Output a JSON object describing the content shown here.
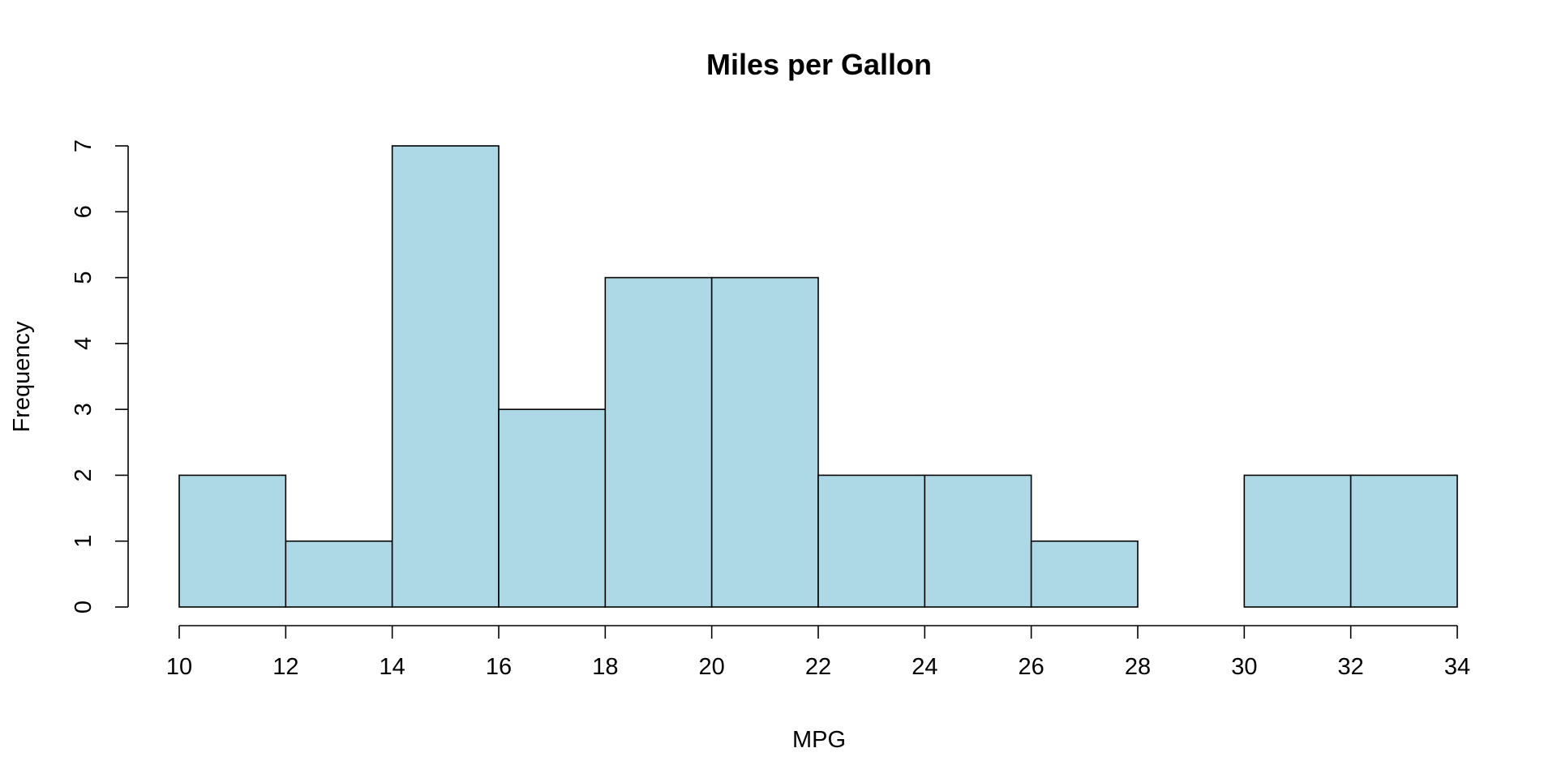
{
  "chart_data": {
    "type": "bar",
    "histogram": true,
    "title": "Miles per Gallon",
    "xlabel": "MPG",
    "ylabel": "Frequency",
    "bin_edges": [
      10,
      12,
      14,
      16,
      18,
      20,
      22,
      24,
      26,
      28,
      30,
      32,
      34
    ],
    "values": [
      2,
      1,
      7,
      3,
      5,
      5,
      2,
      2,
      1,
      0,
      2,
      2
    ],
    "xlim": [
      10,
      34
    ],
    "ylim": [
      0,
      7
    ],
    "x_ticks": [
      "10",
      "12",
      "14",
      "16",
      "18",
      "20",
      "22",
      "24",
      "26",
      "28",
      "30",
      "32",
      "34"
    ],
    "y_ticks": [
      "0",
      "1",
      "2",
      "3",
      "4",
      "5",
      "6",
      "7"
    ],
    "bar_color": "#ADD8E6",
    "grid": false
  }
}
